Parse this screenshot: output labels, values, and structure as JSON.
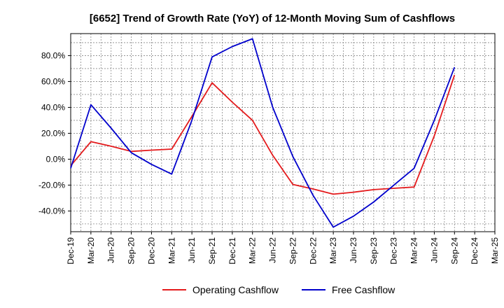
{
  "chart_data": {
    "type": "line",
    "title": "[6652]  Trend of Growth Rate (YoY) of 12-Month Moving Sum of Cashflows",
    "xlabel": "",
    "ylabel": "",
    "x": [
      "Dec-19",
      "Mar-20",
      "Jun-20",
      "Sep-20",
      "Dec-20",
      "Mar-21",
      "Jun-21",
      "Sep-21",
      "Dec-21",
      "Mar-22",
      "Jun-22",
      "Sep-22",
      "Dec-22",
      "Mar-23",
      "Jun-23",
      "Sep-23",
      "Dec-23",
      "Mar-24",
      "Jun-24",
      "Sep-24",
      "Dec-24",
      "Mar-25"
    ],
    "y_ticks": [
      80,
      60,
      40,
      20,
      0,
      -20,
      -40
    ],
    "y_tick_labels": [
      "80.0%",
      "60.0%",
      "40.0%",
      "20.0%",
      "0.0%",
      "-20.0%",
      "-40.0%"
    ],
    "ylim": [
      -56,
      97
    ],
    "grid": true,
    "legend_position": "bottom",
    "series": [
      {
        "name": "Operating Cashflow",
        "color": "#e41a1c",
        "values": [
          -5,
          13.5,
          10,
          6,
          7,
          7.8,
          33,
          59,
          44,
          30,
          3,
          -19.5,
          -23,
          -27,
          -25.5,
          -23.5,
          -22.5,
          -21.5,
          18,
          65,
          null,
          null
        ]
      },
      {
        "name": "Free Cashflow",
        "color": "#0000cc",
        "values": [
          -7,
          42,
          24,
          5,
          -4,
          -11.5,
          30,
          79,
          87,
          93,
          40,
          2,
          -28,
          -52.5,
          -44,
          -33,
          -20,
          -7,
          30,
          71,
          null,
          null
        ]
      }
    ]
  }
}
